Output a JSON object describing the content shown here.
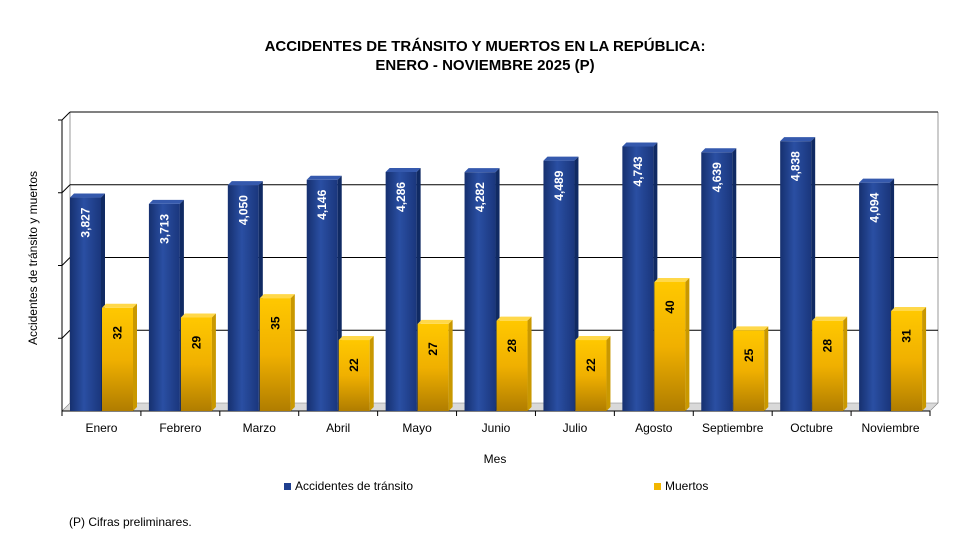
{
  "chart_data": {
    "type": "bar",
    "title": "ACCIDENTES DE TRÁNSITO Y MUERTOS EN LA REPÚBLICA:",
    "subtitle": "ENERO - NOVIEMBRE 2025 (P)",
    "xlabel": "Mes",
    "ylabel": "Accidentes de tránsito y muertos",
    "categories": [
      "Enero",
      "Febrero",
      "Marzo",
      "Abril",
      "Mayo",
      "Junio",
      "Julio",
      "Agosto",
      "Septiembre",
      "Octubre",
      "Noviembre"
    ],
    "series": [
      {
        "name": "Accidentes de tránsito",
        "color": "#1f3f8f",
        "values": [
          3827,
          3713,
          4050,
          4146,
          4286,
          4282,
          4489,
          4743,
          4639,
          4838,
          4094
        ],
        "labels": [
          "3,827",
          "3,713",
          "4,050",
          "4,146",
          "4,286",
          "4,282",
          "4,489",
          "4,743",
          "4,639",
          "4,838",
          "4,094"
        ]
      },
      {
        "name": "Muertos",
        "color": "#f2b600",
        "values": [
          32,
          29,
          35,
          22,
          27,
          28,
          22,
          40,
          25,
          28,
          31
        ],
        "labels": [
          "32",
          "29",
          "35",
          "22",
          "27",
          "28",
          "22",
          "40",
          "25",
          "28",
          "31"
        ]
      }
    ],
    "grid": true,
    "legend": "bottom",
    "footnote": "(P) Cifras preliminares."
  }
}
